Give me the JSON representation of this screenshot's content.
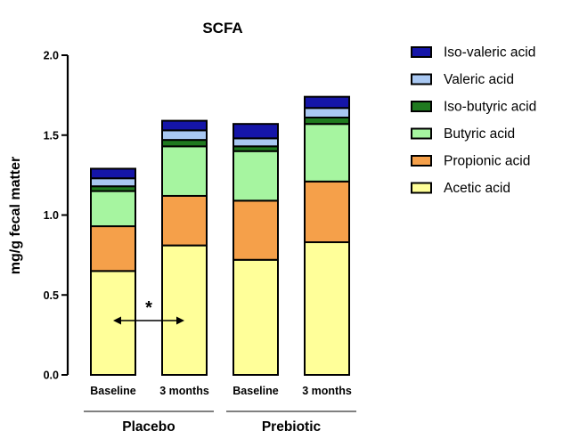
{
  "chart_data": {
    "type": "bar",
    "stacked": true,
    "title": "SCFA",
    "xlabel": "",
    "ylabel": "mg/g fecal matter",
    "ylim": [
      0,
      2.0
    ],
    "yticks": [
      "0.0",
      "0.5",
      "1.0",
      "1.5",
      "2.0"
    ],
    "categories": [
      "Baseline",
      "3 months",
      "Baseline",
      "3 months"
    ],
    "groups": [
      {
        "label": "Placebo",
        "categories": [
          0,
          1
        ]
      },
      {
        "label": "Prebiotic",
        "categories": [
          2,
          3
        ]
      }
    ],
    "series": [
      {
        "name": "Acetic acid",
        "color": "#ffff99",
        "values": [
          0.65,
          0.81,
          0.72,
          0.83
        ]
      },
      {
        "name": "Propionic acid",
        "color": "#f5a04a",
        "values": [
          0.28,
          0.31,
          0.37,
          0.38
        ]
      },
      {
        "name": "Butyric acid",
        "color": "#a6f5a0",
        "values": [
          0.22,
          0.31,
          0.31,
          0.36
        ]
      },
      {
        "name": "Iso-butyric acid",
        "color": "#1f7a1f",
        "values": [
          0.03,
          0.04,
          0.03,
          0.04
        ]
      },
      {
        "name": "Valeric acid",
        "color": "#a9c8f2",
        "values": [
          0.05,
          0.06,
          0.05,
          0.06
        ]
      },
      {
        "name": "Iso-valeric acid",
        "color": "#1515a8",
        "values": [
          0.06,
          0.06,
          0.09,
          0.07
        ]
      }
    ],
    "legend_order": [
      "Iso-valeric acid",
      "Valeric acid",
      "Iso-butyric acid",
      "Butyric acid",
      "Propionic acid",
      "Acetic acid"
    ],
    "legend_position": "right",
    "annotation": {
      "text": "*",
      "between_categories": [
        0,
        1
      ],
      "y": 0.34
    }
  }
}
